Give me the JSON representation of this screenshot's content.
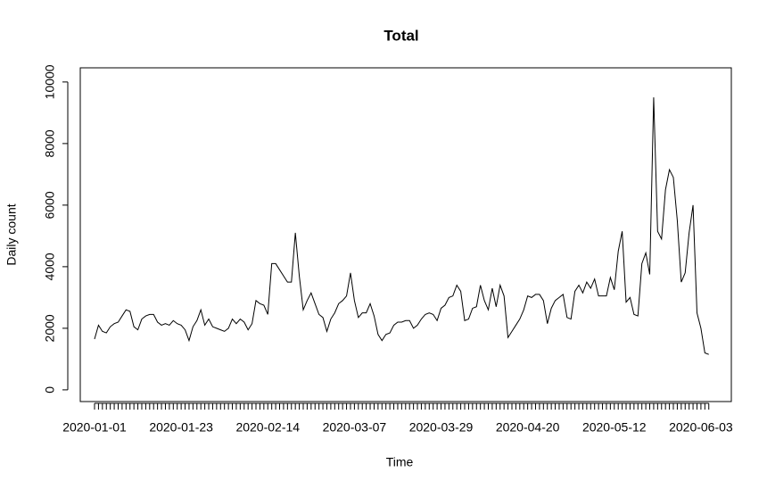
{
  "chart_data": {
    "type": "line",
    "title": "Total",
    "x_label": "Time",
    "y_label": "Daily count",
    "categories": [
      "2020-01-01",
      null,
      null,
      null,
      null,
      null,
      null,
      null,
      null,
      null,
      null,
      null,
      null,
      null,
      null,
      null,
      null,
      null,
      null,
      null,
      null,
      null,
      "2020-01-23",
      null,
      null,
      null,
      null,
      null,
      null,
      null,
      null,
      null,
      null,
      null,
      null,
      null,
      null,
      null,
      null,
      null,
      null,
      null,
      null,
      null,
      "2020-02-14",
      null,
      null,
      null,
      null,
      null,
      null,
      null,
      null,
      null,
      null,
      null,
      null,
      null,
      null,
      null,
      null,
      null,
      null,
      null,
      null,
      null,
      "2020-03-07",
      null,
      null,
      null,
      null,
      null,
      null,
      null,
      null,
      null,
      null,
      null,
      null,
      null,
      null,
      null,
      null,
      null,
      null,
      null,
      null,
      null,
      "2020-03-29",
      null,
      null,
      null,
      null,
      null,
      null,
      null,
      null,
      null,
      null,
      null,
      null,
      null,
      null,
      null,
      null,
      null,
      null,
      null,
      null,
      null,
      "2020-04-20",
      null,
      null,
      null,
      null,
      null,
      null,
      null,
      null,
      null,
      null,
      null,
      null,
      null,
      null,
      null,
      null,
      null,
      null,
      null,
      null,
      null,
      "2020-05-12",
      null,
      null,
      null,
      null,
      null,
      null,
      null,
      null,
      null,
      null,
      null,
      null,
      null,
      null,
      null,
      null,
      null,
      null,
      null,
      null,
      null,
      "2020-06-03",
      null,
      null
    ],
    "values": [
      1650,
      2100,
      1900,
      1850,
      2050,
      2150,
      2200,
      2400,
      2600,
      2550,
      2050,
      1950,
      2300,
      2400,
      2450,
      2450,
      2200,
      2100,
      2150,
      2100,
      2250,
      2150,
      2100,
      1950,
      1600,
      2050,
      2250,
      2600,
      2100,
      2300,
      2050,
      2000,
      1950,
      1900,
      2000,
      2300,
      2150,
      2300,
      2200,
      1950,
      2150,
      2900,
      2800,
      2750,
      2450,
      4100,
      4100,
      3900,
      3700,
      3500,
      3500,
      5100,
      3700,
      2600,
      2900,
      3150,
      2800,
      2450,
      2350,
      1900,
      2300,
      2500,
      2800,
      2900,
      3050,
      3800,
      2900,
      2350,
      2500,
      2500,
      2800,
      2400,
      1800,
      1600,
      1800,
      1850,
      2100,
      2200,
      2200,
      2250,
      2250,
      2000,
      2100,
      2300,
      2450,
      2500,
      2450,
      2250,
      2650,
      2750,
      3000,
      3050,
      3400,
      3200,
      2250,
      2300,
      2650,
      2700,
      3400,
      2900,
      2600,
      3300,
      2700,
      3400,
      3050,
      1700,
      1900,
      2100,
      2300,
      2600,
      3050,
      3000,
      3100,
      3100,
      2900,
      2150,
      2650,
      2900,
      3000,
      3100,
      2350,
      2300,
      3200,
      3400,
      3150,
      3500,
      3300,
      3600,
      3050,
      3050,
      3050,
      3650,
      3250,
      4500,
      5150,
      2850,
      3000,
      2450,
      2400,
      4100,
      4450,
      3750,
      9500,
      5150,
      4900,
      6500,
      7150,
      6900,
      5500,
      3500,
      3800,
      5100,
      6000,
      2500,
      2000,
      1200,
      1150
    ],
    "color": "#000000",
    "ylim": [
      -380,
      10460
    ],
    "yticks": [
      0,
      2000,
      4000,
      6000,
      8000,
      10000
    ]
  }
}
